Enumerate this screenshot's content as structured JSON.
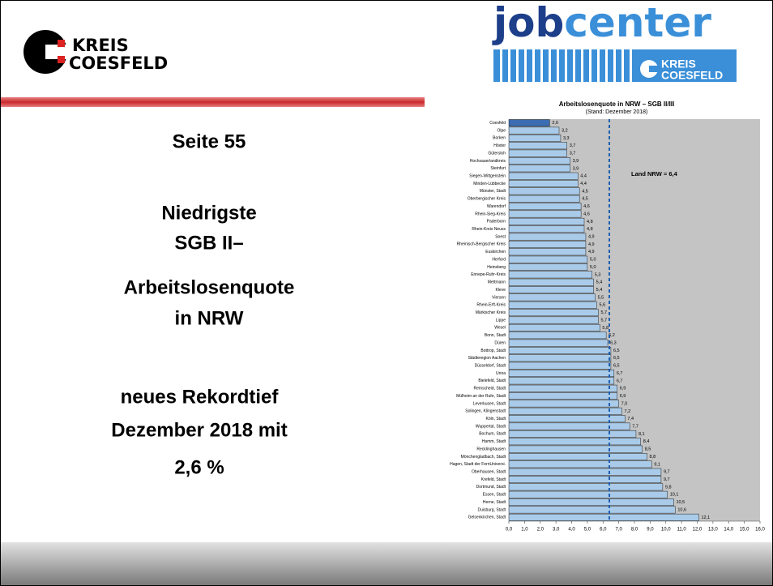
{
  "logo_left": {
    "line1": "KREIS",
    "line2": "COESFELD"
  },
  "logo_right": {
    "word1": "job",
    "word2": "center",
    "line1": "KREIS",
    "line2": "COESFELD"
  },
  "text": {
    "page": "Seite 55",
    "heading": [
      "Niedrigste",
      "SGB II–",
      "Arbeitslosenquote",
      "in NRW"
    ],
    "note": [
      "neues Rekordtief",
      "Dezember 2018 mit",
      "2,6 %"
    ]
  },
  "chart_data": {
    "type": "barh",
    "title": "Arbeitslosenquote in NRW – SGB II/III",
    "subtitle": "(Stand: Dezember 2018)",
    "categories": [
      "Coesfeld",
      "Olpe",
      "Borken",
      "Höxter",
      "Gütersloh",
      "Hochsauerlandkreis",
      "Steinfurt",
      "Siegen-Wittgenstein",
      "Minden-Lübbecke",
      "Münster, Stadt",
      "Oberbergischer Kreis",
      "Warendorf",
      "Rhein-Sieg-Kreis",
      "Paderborn",
      "Rhein-Kreis Neuss",
      "Soest",
      "Rheinisch-Bergischer Kreis",
      "Euskirchen",
      "Herford",
      "Heinsberg",
      "Ennepe-Ruhr-Kreis",
      "Mettmann",
      "Kleve",
      "Viersen",
      "Rhein-Erft-Kreis",
      "Märkischer Kreis",
      "Lippe",
      "Wesel",
      "Bonn, Stadt",
      "Düren",
      "Bottrop, Stadt",
      "Städteregion Aachen",
      "Düsseldorf, Stadt",
      "Unna",
      "Bielefeld, Stadt",
      "Remscheid, Stadt",
      "Mülheim an der Ruhr, Stadt",
      "Leverkusen, Stadt",
      "Solingen, Klingenstadt",
      "Köln, Stadt",
      "Wuppertal, Stadt",
      "Bochum, Stadt",
      "Hamm, Stadt",
      "Recklinghausen",
      "Mönchengladbach, Stadt",
      "Hagen, Stadt der FernUniversi.",
      "Oberhausen, Stadt",
      "Krefeld, Stadt",
      "Dortmund, Stadt",
      "Essen, Stadt",
      "Herne, Stadt",
      "Duisburg, Stadt",
      "Gelsenkirchen, Stadt"
    ],
    "values": [
      2.6,
      3.2,
      3.3,
      3.7,
      3.7,
      3.9,
      3.9,
      4.4,
      4.4,
      4.5,
      4.5,
      4.6,
      4.6,
      4.8,
      4.8,
      4.9,
      4.9,
      4.9,
      5.0,
      5.0,
      5.3,
      5.4,
      5.4,
      5.5,
      5.6,
      5.7,
      5.7,
      5.8,
      6.2,
      6.3,
      6.5,
      6.5,
      6.5,
      6.7,
      6.7,
      6.9,
      6.9,
      7.0,
      7.2,
      7.4,
      7.7,
      8.1,
      8.4,
      8.5,
      8.8,
      9.1,
      9.7,
      9.7,
      9.8,
      10.1,
      10.5,
      10.6,
      12.1
    ],
    "value_labels": [
      "2,6",
      "3,2",
      "3,3",
      "3,7",
      "3,7",
      "3,9",
      "3,9",
      "4,4",
      "4,4",
      "4,5",
      "4,5",
      "4,6",
      "4,6",
      "4,8",
      "4,8",
      "4,9",
      "4,9",
      "4,9",
      "5,0",
      "5,0",
      "5,3",
      "5,4",
      "5,4",
      "5,5",
      "5,6",
      "5,7",
      "5,7",
      "5,8",
      "6,2",
      "6,3",
      "6,5",
      "6,5",
      "6,5",
      "6,7",
      "6,7",
      "6,9",
      "6,9",
      "7,0",
      "7,2",
      "7,4",
      "7,7",
      "8,1",
      "8,4",
      "8,5",
      "8,8",
      "9,1",
      "9,7",
      "9,7",
      "9,8",
      "10,1",
      "10,5",
      "10,6",
      "12,1"
    ],
    "color": "#a9cbe9",
    "highlight_index": 0,
    "highlight_color": "#3c6cb2",
    "xlim": [
      0,
      16
    ],
    "xticks": [
      {
        "value": 0,
        "label": "0,0"
      },
      {
        "value": 1,
        "label": "1,0"
      },
      {
        "value": 2,
        "label": "2,0"
      },
      {
        "value": 3,
        "label": "3,0"
      },
      {
        "value": 4,
        "label": "4,0"
      },
      {
        "value": 5,
        "label": "5,0"
      },
      {
        "value": 6,
        "label": "6,0"
      },
      {
        "value": 7,
        "label": "7,0"
      },
      {
        "value": 8,
        "label": "8,0"
      },
      {
        "value": 9,
        "label": "9,0"
      },
      {
        "value": 10,
        "label": "10,0"
      },
      {
        "value": 11,
        "label": "11,0"
      },
      {
        "value": 12,
        "label": "12,0"
      },
      {
        "value": 13,
        "label": "13,0"
      },
      {
        "value": 14,
        "label": "14,0"
      },
      {
        "value": 15,
        "label": "15,0"
      },
      {
        "value": 16,
        "label": "16,0"
      }
    ],
    "reference": {
      "value": 6.4,
      "label": "Land NRW = 6,4",
      "color": "#1f5fb0"
    }
  }
}
